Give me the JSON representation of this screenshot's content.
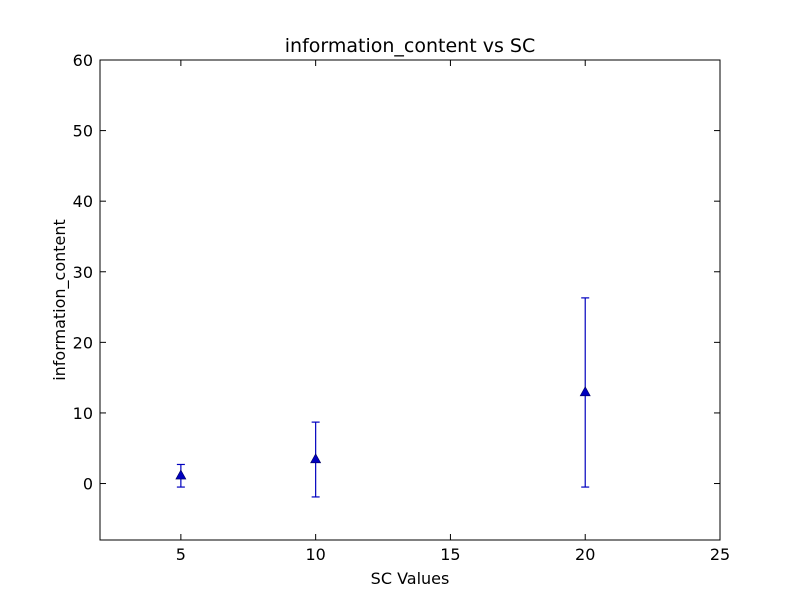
{
  "chart_data": {
    "type": "scatter",
    "title": "information_content vs SC",
    "xlabel": "SC Values",
    "ylabel": "information_content",
    "xlim": [
      2,
      25
    ],
    "ylim": [
      -8,
      60
    ],
    "xticks": [
      5,
      10,
      15,
      20,
      25
    ],
    "yticks": [
      0,
      10,
      20,
      30,
      40,
      50,
      60
    ],
    "grid": false,
    "series": [
      {
        "marker": "triangle-up",
        "color": "#0000bf",
        "points": [
          {
            "x": 5,
            "y": 1.2,
            "err_low": -0.5,
            "err_high": 2.7
          },
          {
            "x": 10,
            "y": 3.5,
            "err_low": -1.9,
            "err_high": 8.7
          },
          {
            "x": 20,
            "y": 13.0,
            "err_low": -0.5,
            "err_high": 26.3
          }
        ]
      }
    ]
  }
}
